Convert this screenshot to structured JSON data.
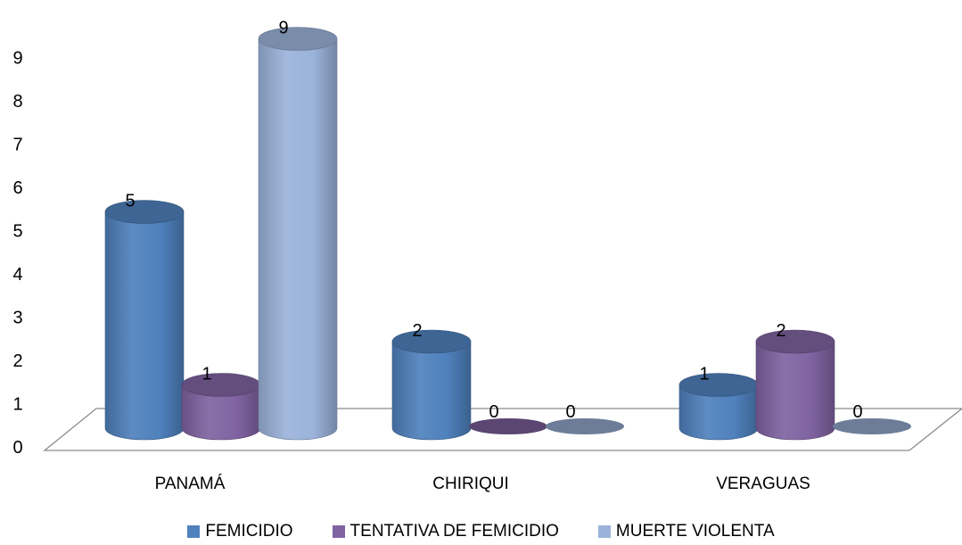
{
  "chart_data": {
    "type": "bar",
    "categories": [
      "PANAMÁ",
      "CHIRIQUI",
      "VERAGUAS"
    ],
    "series": [
      {
        "name": "FEMICIDIO",
        "values": [
          5,
          2,
          1
        ],
        "color": "#4f81bd"
      },
      {
        "name": "TENTATIVA DE FEMICIDIO",
        "values": [
          1,
          0,
          2
        ],
        "color": "#8064a2"
      },
      {
        "name": "MUERTE VIOLENTA",
        "values": [
          9,
          0,
          0
        ],
        "color": "#9bb3da"
      }
    ],
    "y_ticks": [
      "0",
      "1",
      "2",
      "3",
      "4",
      "5",
      "6",
      "7",
      "8",
      "9"
    ],
    "ylim": [
      0,
      9
    ],
    "data_labels": true,
    "grid": false,
    "legend_position": "bottom",
    "style": "3d-cylinder"
  }
}
